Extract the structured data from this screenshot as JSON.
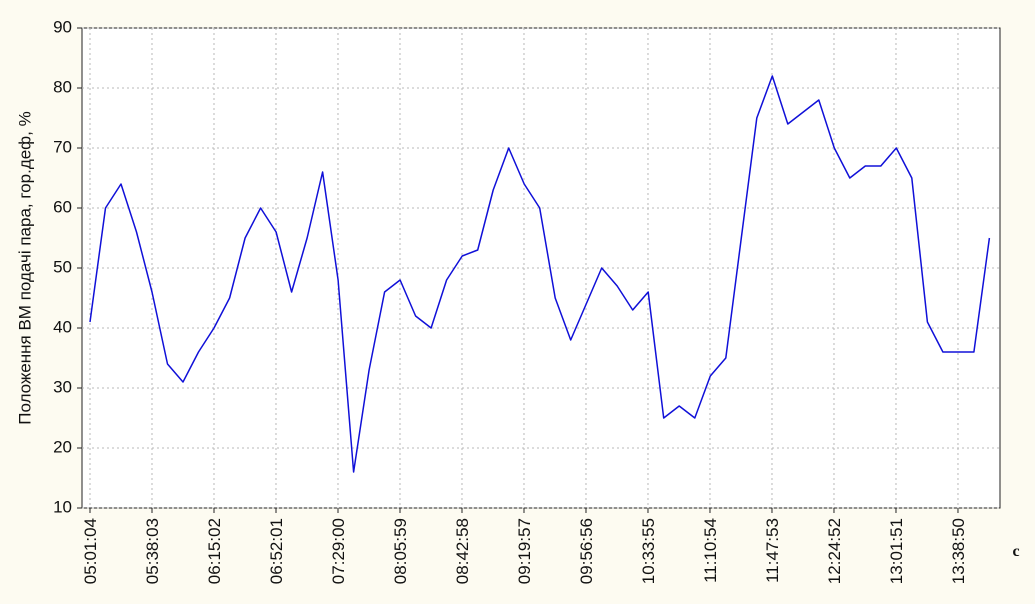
{
  "chart_data": {
    "type": "line",
    "y_label": "Положення ВМ подачі пара, гор.деф, %",
    "x_label": "c",
    "x": [
      "05:01:04",
      "05:10:19",
      "05:19:34",
      "05:28:49",
      "05:38:04",
      "05:47:19",
      "05:56:34",
      "06:05:49",
      "06:15:04",
      "06:24:19",
      "06:33:34",
      "06:42:49",
      "06:52:04",
      "07:01:19",
      "07:10:34",
      "07:19:49",
      "07:29:04",
      "07:38:19",
      "07:47:34",
      "07:56:49",
      "08:06:04",
      "08:15:19",
      "08:24:34",
      "08:33:49",
      "08:43:04",
      "08:52:19",
      "09:01:34",
      "09:10:49",
      "09:20:04",
      "09:29:19",
      "09:38:34",
      "09:47:49",
      "09:57:04",
      "10:06:19",
      "10:15:34",
      "10:24:49",
      "10:34:04",
      "10:43:19",
      "10:52:34",
      "11:01:49",
      "11:11:04",
      "11:20:19",
      "11:29:34",
      "11:38:49",
      "11:48:04",
      "11:57:19",
      "12:06:34",
      "12:15:49",
      "12:25:04",
      "12:34:19",
      "12:43:34",
      "12:52:49",
      "13:02:04",
      "13:11:19",
      "13:20:34",
      "13:29:49",
      "13:39:04",
      "13:48:19",
      "13:57:34"
    ],
    "series": [
      {
        "color": "#1010d8",
        "values": [
          41,
          60,
          64,
          56,
          46,
          34,
          31,
          36,
          40,
          45,
          55,
          60,
          56,
          46,
          55,
          66,
          48,
          16,
          33,
          46,
          48,
          42,
          40,
          48,
          52,
          53,
          63,
          70,
          64,
          60,
          45,
          38,
          44,
          50,
          47,
          43,
          46,
          25,
          27,
          25,
          32,
          35,
          55,
          75,
          82,
          74,
          76,
          78,
          70,
          65,
          67,
          67,
          70,
          65,
          41,
          36,
          36,
          36,
          55
        ]
      }
    ],
    "xlim": [
      "04:56:18",
      "14:03:54"
    ],
    "xticks": [
      "05:01:04",
      "05:38:03",
      "06:15:02",
      "06:52:01",
      "07:29:00",
      "08:05:59",
      "08:42:58",
      "09:19:57",
      "09:56:56",
      "10:33:55",
      "11:10:54",
      "11:47:53",
      "12:24:52",
      "13:01:51",
      "13:38:50"
    ],
    "ylim": [
      10,
      90
    ],
    "yticks": [
      10,
      20,
      30,
      40,
      50,
      60,
      70,
      80,
      90
    ],
    "grid": true
  }
}
